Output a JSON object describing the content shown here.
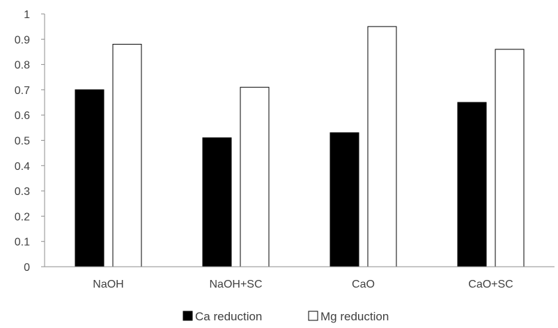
{
  "chart_data": {
    "type": "bar",
    "title": "",
    "xlabel": "",
    "ylabel": "",
    "categories": [
      "NaOH",
      "NaOH+SC",
      "CaO",
      "CaO+SC"
    ],
    "series": [
      {
        "name": "Ca reduction",
        "values": [
          0.7,
          0.51,
          0.53,
          0.65
        ],
        "fill": "#000000",
        "stroke": "#000000"
      },
      {
        "name": "Mg reduction",
        "values": [
          0.88,
          0.71,
          0.95,
          0.86
        ],
        "fill": "#ffffff",
        "stroke": "#000000"
      }
    ],
    "ylim": [
      0,
      1
    ],
    "yticks": [
      "0",
      "0.1",
      "0.2",
      "0.3",
      "0.4",
      "0.5",
      "0.6",
      "0.7",
      "0.8",
      "0.9",
      "1"
    ],
    "grid": false,
    "legend_position": "bottom"
  }
}
